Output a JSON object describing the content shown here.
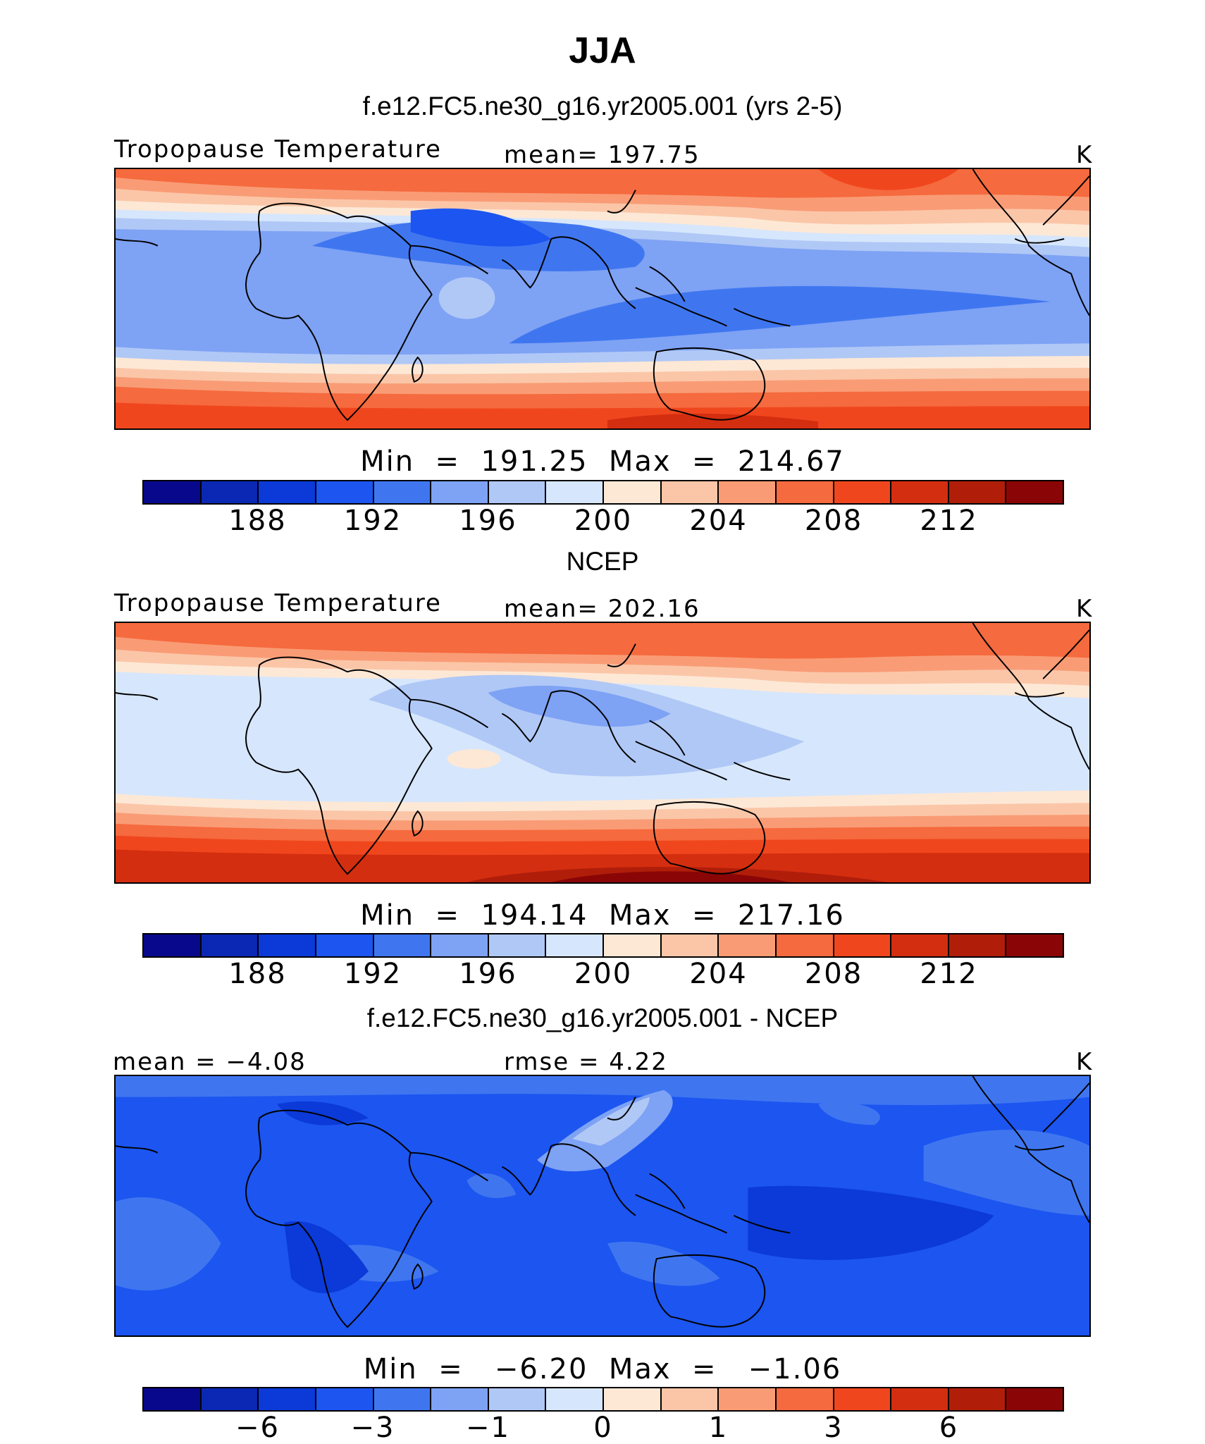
{
  "title": "JJA",
  "colors": [
    "#08088c",
    "#0a28b4",
    "#0b3ad8",
    "#1c55f0",
    "#3f76f0",
    "#7ea2f4",
    "#b0c8f6",
    "#d6e6fc",
    "#fde8d6",
    "#fbc6a8",
    "#f99c76",
    "#f56a3e",
    "#f0461e",
    "#d42e10",
    "#b01e0a",
    "#8a0606"
  ],
  "panels": [
    {
      "subtitle": "f.e12.FC5.ne30_g16.yr2005.001 (yrs 2-5)",
      "left_label": "Tropopause Temperature",
      "center_label": "mean=  197.75",
      "units": "K",
      "minmax": "Min  =  191.25  Max  =  214.67",
      "ticks": [
        "188",
        "192",
        "196",
        "200",
        "204",
        "208",
        "212"
      ]
    },
    {
      "subtitle": "NCEP",
      "left_label": "Tropopause Temperature",
      "center_label": "mean=  202.16",
      "units": "K",
      "minmax": "Min  =  194.14  Max  =  217.16",
      "ticks": [
        "188",
        "192",
        "196",
        "200",
        "204",
        "208",
        "212"
      ]
    },
    {
      "subtitle": "f.e12.FC5.ne30_g16.yr2005.001 - NCEP",
      "left_label": "mean  =   −4.08",
      "center_label": "rmse  =    4.22",
      "units": "K",
      "minmax": "Min  =   −6.20  Max  =   −1.06",
      "ticks": [
        "−6",
        "−3",
        "−1",
        "0",
        "1",
        "3",
        "6"
      ]
    }
  ]
}
